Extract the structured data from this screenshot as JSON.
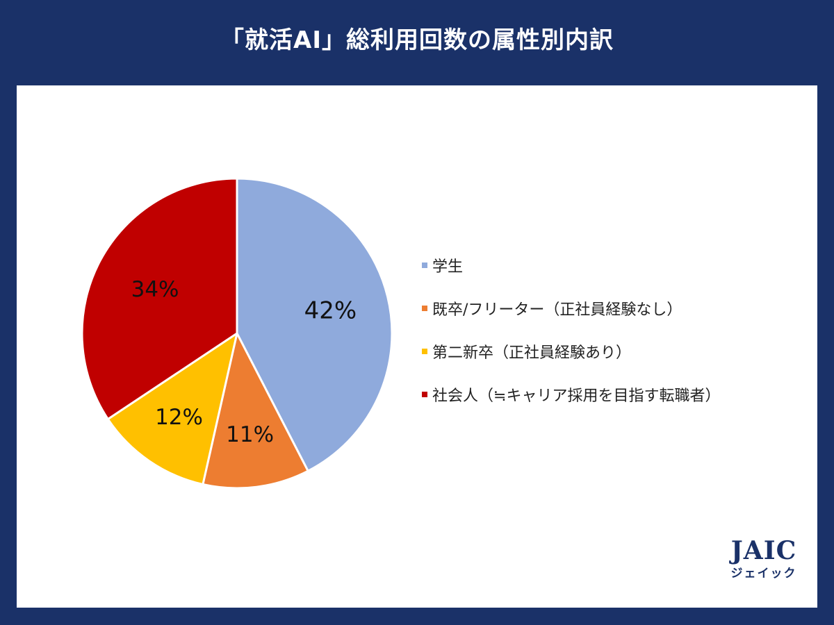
{
  "title": "「就活AI」総利用回数の属性別内訳",
  "chart_data": {
    "type": "pie",
    "categories": [
      "学生",
      "既卒/フリーター（正社員経験なし）",
      "第二新卒（正社員経験あり）",
      "社会人（≒キャリア採用を目指す転職者）"
    ],
    "values": [
      42,
      11,
      12,
      34
    ],
    "data_labels": [
      "42%",
      "11%",
      "12%",
      "34%"
    ],
    "colors": [
      "#8faadc",
      "#ed7d31",
      "#ffc000",
      "#c00000"
    ],
    "legend_placement": "right",
    "start_angle_deg": 0,
    "direction": "clockwise"
  },
  "logo": {
    "main": "JAIC",
    "sub": "ジェイック"
  }
}
